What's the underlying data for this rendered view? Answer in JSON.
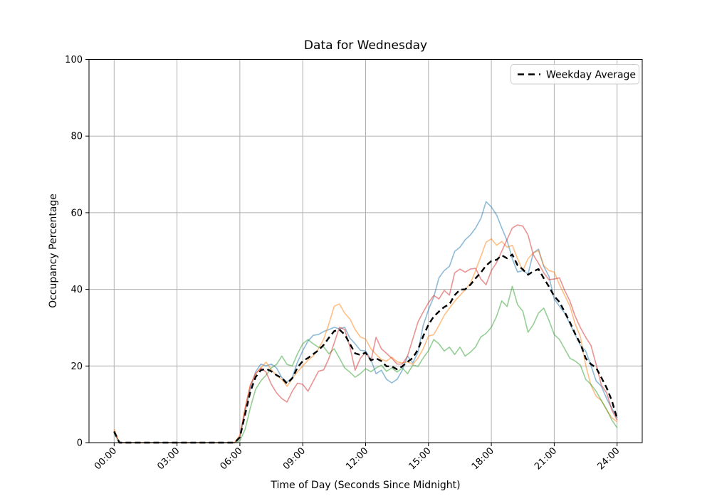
{
  "figure": {
    "title": "Data for Wednesday",
    "xlabel": "Time of Day (Seconds Since Midnight)",
    "ylabel": "Occupancy Percentage",
    "legend": {
      "label": "Weekday Average"
    },
    "colors": {
      "background": "#ffffff",
      "grid": "#b0b0b0",
      "spine": "#000000",
      "legend_border": "#cccccc",
      "legend_face": "#ffffff"
    }
  },
  "chart_data": {
    "type": "line",
    "title": "Data for Wednesday",
    "xlabel": "Time of Day (Seconds Since Midnight)",
    "ylabel": "Occupancy Percentage",
    "grid": true,
    "legend_position": "upper right",
    "legend_entries": [
      "Weekday Average"
    ],
    "ylim": [
      0,
      100
    ],
    "y_ticks": [
      0,
      20,
      40,
      60,
      80,
      100
    ],
    "x_tick_hours": [
      0,
      3,
      6,
      9,
      12,
      15,
      18,
      21,
      24
    ],
    "x_tick_labels": [
      "00:00",
      "03:00",
      "06:00",
      "09:00",
      "12:00",
      "15:00",
      "18:00",
      "21:00",
      "24:00"
    ],
    "x_tick_rotation_deg": 45,
    "x_hours": [
      0,
      0.25,
      0.5,
      0.75,
      1,
      1.25,
      1.5,
      1.75,
      2,
      2.25,
      2.5,
      2.75,
      3,
      3.25,
      3.5,
      3.75,
      4,
      4.25,
      4.5,
      4.75,
      5,
      5.25,
      5.5,
      5.75,
      6,
      6.25,
      6.5,
      6.75,
      7,
      7.25,
      7.5,
      7.75,
      8,
      8.25,
      8.5,
      8.75,
      9,
      9.25,
      9.5,
      9.75,
      10,
      10.25,
      10.5,
      10.75,
      11,
      11.25,
      11.5,
      11.75,
      12,
      12.25,
      12.5,
      12.75,
      13,
      13.25,
      13.5,
      13.75,
      14,
      14.25,
      14.5,
      14.75,
      15,
      15.25,
      15.5,
      15.75,
      16,
      16.25,
      16.5,
      16.75,
      17,
      17.25,
      17.5,
      17.75,
      18,
      18.25,
      18.5,
      18.75,
      19,
      19.25,
      19.5,
      19.75,
      20,
      20.25,
      20.5,
      20.75,
      21,
      21.25,
      21.5,
      21.75,
      22,
      22.25,
      22.5,
      22.75,
      23,
      23.25,
      23.5,
      23.75,
      24
    ],
    "series": [
      {
        "name": "day-line-blue",
        "color": "#1f77b4",
        "opacity": 0.5,
        "width": 1.6,
        "dash": null,
        "in_legend": false,
        "values": [
          2.5,
          0,
          0,
          0,
          0,
          0,
          0,
          0,
          0,
          0,
          0,
          0,
          0,
          0,
          0,
          0,
          0,
          0,
          0,
          0,
          0,
          0,
          0,
          0,
          1.5,
          8,
          14,
          18.5,
          20.5,
          20,
          20.5,
          19.5,
          17,
          15.8,
          17,
          21,
          24,
          26.5,
          28,
          28.2,
          29,
          29.5,
          30.1,
          29.7,
          30.1,
          27.3,
          25.8,
          24.1,
          23.9,
          21.7,
          18,
          18.9,
          16.5,
          15.6,
          16.5,
          18.9,
          22.6,
          20.8,
          23.6,
          30.6,
          34.7,
          38,
          43,
          44.9,
          46,
          49.9,
          51,
          52.9,
          54.2,
          56,
          58.5,
          62.9,
          61.5,
          59.4,
          56,
          52.7,
          48,
          44.5,
          44.9,
          44,
          49.5,
          50.5,
          46,
          43.4,
          37.5,
          35.6,
          33.8,
          31,
          28.2,
          25.4,
          23.9,
          20.2,
          16.1,
          14.7,
          11.5,
          9,
          6.5
        ]
      },
      {
        "name": "day-line-orange",
        "color": "#ff7f0e",
        "opacity": 0.5,
        "width": 1.6,
        "dash": null,
        "in_legend": false,
        "values": [
          3.5,
          0,
          0,
          0,
          0,
          0,
          0,
          0,
          0,
          0,
          0,
          0,
          0,
          0,
          0,
          0,
          0,
          0,
          0,
          0,
          0,
          0,
          0,
          0,
          2,
          9,
          15,
          18,
          19.5,
          21,
          19,
          17.5,
          16.5,
          14.7,
          16.8,
          18.5,
          20,
          21.5,
          22.6,
          24.5,
          27,
          31,
          35.6,
          36.2,
          33.8,
          32.3,
          29.5,
          27.6,
          27,
          24.5,
          23,
          21.7,
          21.3,
          22.3,
          21.1,
          20.8,
          21.1,
          20.4,
          22.1,
          24.5,
          27.8,
          28.2,
          30.6,
          33.2,
          35.1,
          36.9,
          38.4,
          39.9,
          41.6,
          44.9,
          48.6,
          52.3,
          53.2,
          51.5,
          52.5,
          51,
          51.5,
          48,
          44.9,
          48,
          49.5,
          50.1,
          46.2,
          44.9,
          44.5,
          41.2,
          38.4,
          35.6,
          31,
          27.6,
          20.2,
          15,
          12.1,
          11,
          8.5,
          6.5,
          5.4
        ]
      },
      {
        "name": "day-line-green",
        "color": "#2ca02c",
        "opacity": 0.5,
        "width": 1.6,
        "dash": null,
        "in_legend": false,
        "values": [
          2.5,
          0,
          0,
          0,
          0,
          0,
          0,
          0,
          0,
          0,
          0,
          0,
          0,
          0,
          0,
          0,
          0,
          0,
          0,
          0,
          0,
          0,
          0,
          0,
          0.5,
          3.5,
          9.1,
          13.9,
          16.1,
          17.6,
          19.5,
          20.4,
          22.6,
          20.4,
          20,
          23.2,
          25.8,
          26.9,
          25.8,
          24.9,
          25,
          23.2,
          24.5,
          22.1,
          19.5,
          18.4,
          17.1,
          18,
          19.3,
          18.5,
          19.5,
          20.2,
          18.6,
          19.5,
          18.4,
          19.5,
          18,
          20.2,
          19.9,
          22.1,
          24,
          26.9,
          25.8,
          23.9,
          24.9,
          23,
          24.9,
          22.6,
          23.6,
          25,
          27.6,
          28.5,
          30.1,
          33,
          37,
          35.5,
          40.8,
          36,
          34.3,
          28.8,
          30.8,
          33.8,
          35.1,
          31.9,
          28.2,
          26.9,
          24.5,
          22,
          21.3,
          20.2,
          16.5,
          15.2,
          13.4,
          11,
          8.7,
          5.9,
          3.9
        ]
      },
      {
        "name": "day-line-red",
        "color": "#d62728",
        "opacity": 0.5,
        "width": 1.6,
        "dash": null,
        "in_legend": false,
        "values": [
          3,
          0,
          0,
          0,
          0,
          0,
          0,
          0,
          0,
          0,
          0,
          0,
          0,
          0,
          0,
          0,
          0,
          0,
          0,
          0,
          0,
          0,
          0,
          0,
          1.5,
          9,
          15,
          18,
          19.5,
          18.4,
          15.2,
          13,
          11.5,
          10.6,
          13.4,
          15.5,
          15.2,
          13.4,
          16,
          18.6,
          19,
          22,
          26,
          30.1,
          29.5,
          25,
          18.9,
          22,
          23.6,
          21.3,
          27.5,
          24.5,
          23.3,
          22,
          20.5,
          20.5,
          22.6,
          27,
          31.5,
          34.1,
          36.5,
          38.4,
          37.5,
          39.7,
          38.5,
          44.3,
          45.3,
          44.5,
          45.3,
          45.5,
          42.7,
          41.2,
          44.9,
          47,
          50,
          53,
          56,
          56.8,
          56.5,
          54.2,
          49,
          46.8,
          44.3,
          42.5,
          42.7,
          43,
          39.7,
          36.9,
          33,
          30,
          27.5,
          25.4,
          20.4,
          15,
          13,
          8.5,
          5.9
        ]
      },
      {
        "name": "Weekday Average",
        "color": "#000000",
        "opacity": 1,
        "width": 2.4,
        "dash": [
          8,
          5
        ],
        "in_legend": true,
        "values": [
          2.9,
          0,
          0,
          0,
          0,
          0,
          0,
          0,
          0,
          0,
          0,
          0,
          0,
          0,
          0,
          0,
          0,
          0,
          0,
          0,
          0,
          0,
          0,
          0,
          1.4,
          7.4,
          13.3,
          17.1,
          18.9,
          19.3,
          18.6,
          17.6,
          16.9,
          15.4,
          16.8,
          19.6,
          21.3,
          22.1,
          23.1,
          24.1,
          25.5,
          27.4,
          29.1,
          29.5,
          28.2,
          25.8,
          23.3,
          22.9,
          23.5,
          21.5,
          22,
          21.3,
          19.9,
          19.9,
          19.1,
          19.9,
          21.1,
          22.1,
          24.3,
          27.8,
          30.8,
          32.9,
          34.2,
          35.4,
          36.1,
          38.5,
          39.9,
          40,
          41.2,
          42.9,
          44.4,
          46.2,
          47.4,
          47.7,
          48.9,
          48.1,
          49.1,
          46.3,
          45.2,
          43.8,
          44.7,
          45.3,
          42.9,
          40.7,
          38.2,
          36.7,
          34.1,
          31.4,
          28.4,
          25.8,
          22,
          20.5,
          19.5,
          17,
          14.3,
          11,
          6.3
        ]
      }
    ]
  }
}
